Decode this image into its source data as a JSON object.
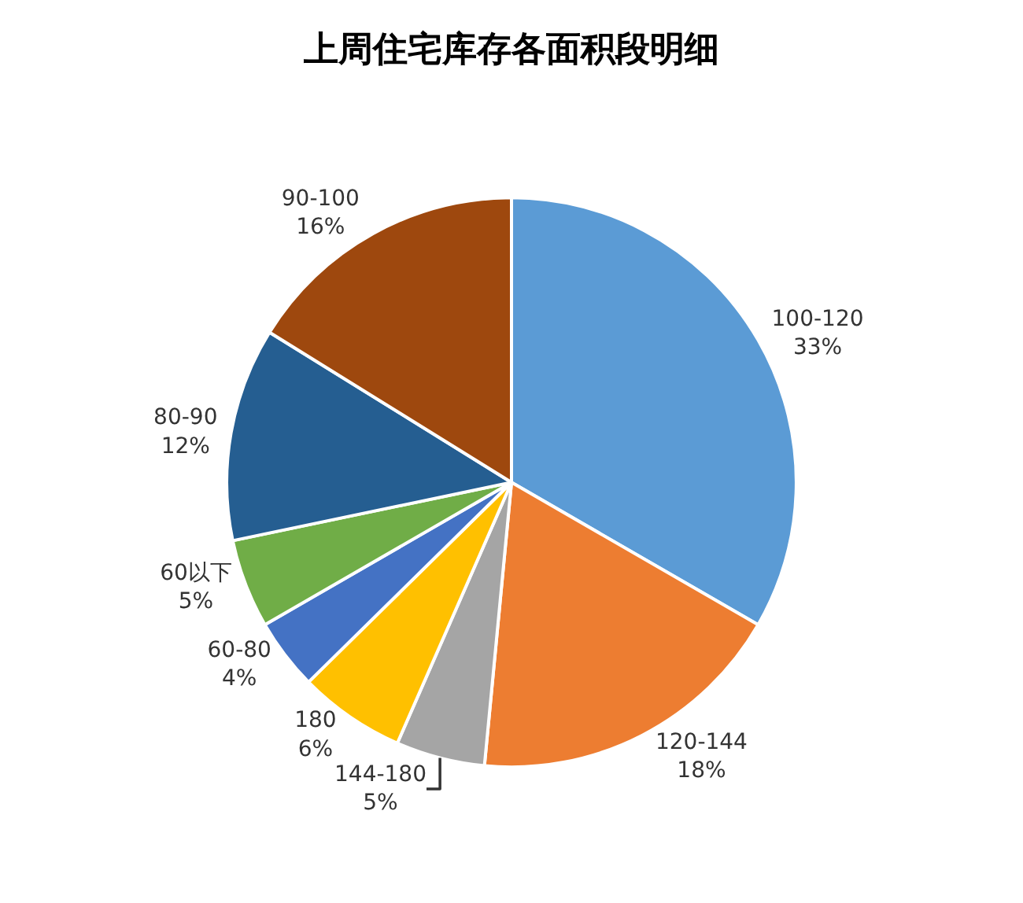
{
  "chart_data": {
    "type": "pie",
    "title": "上周住宅库存各面积段明细",
    "categories": [
      "100-120",
      "120-144",
      "144-180",
      "180",
      "60-80",
      "60以下",
      "80-90",
      "90-100"
    ],
    "values": [
      33,
      18,
      5,
      6,
      4,
      5,
      12,
      16
    ],
    "value_labels": [
      "33%",
      "18%",
      "5%",
      "6%",
      "4%",
      "5%",
      "12%",
      "16%"
    ],
    "colors": [
      "#5b9bd5",
      "#ed7d31",
      "#a5a5a5",
      "#ffc000",
      "#4472c4",
      "#70ad47",
      "#255e91",
      "#9e480e"
    ],
    "legend": false
  }
}
